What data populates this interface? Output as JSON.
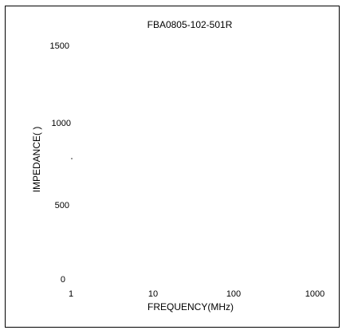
{
  "chart_data": {
    "type": "line",
    "title": "FBA0805-102-501R",
    "xlabel": "FREQUENCY(MHz)",
    "ylabel": "IMPEDANCE(  )",
    "x_scale": "log",
    "xlim": [
      1,
      1000
    ],
    "ylim": [
      0,
      1500
    ],
    "x_ticks": [
      "1",
      "10",
      "100",
      "1000"
    ],
    "y_ticks": [
      "0",
      "500",
      "1000",
      "1500"
    ],
    "grid": false,
    "series": []
  }
}
